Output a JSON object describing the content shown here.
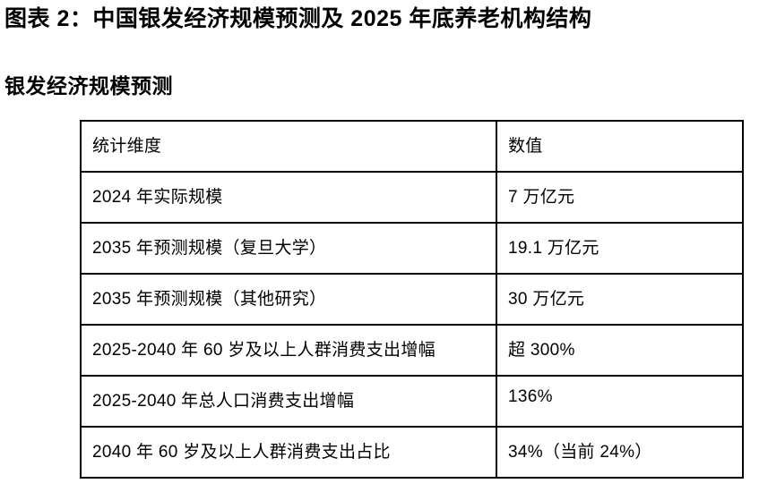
{
  "page": {
    "title": "图表 2：中国银发经济规模预测及 2025 年底养老机构结构",
    "subtitle": "银发经济规模预测"
  },
  "table": {
    "headers": [
      "统计维度",
      "数值"
    ],
    "rows": [
      [
        "2024 年实际规模",
        "7 万亿元"
      ],
      [
        "2035 年预测规模（复旦大学）",
        "19.1 万亿元"
      ],
      [
        "2035 年预测规模（其他研究）",
        "30 万亿元"
      ],
      [
        "2025-2040 年 60 岁及以上人群消费支出增幅",
        "超 300%"
      ],
      [
        "2025-2040 年总人口消费支出增幅",
        "136%"
      ],
      [
        "2040 年 60 岁及以上人群消费支出占比",
        "34%（当前 24%）"
      ]
    ]
  },
  "colors": {
    "text": "#000000",
    "background": "#ffffff",
    "table_border": "#000000"
  }
}
